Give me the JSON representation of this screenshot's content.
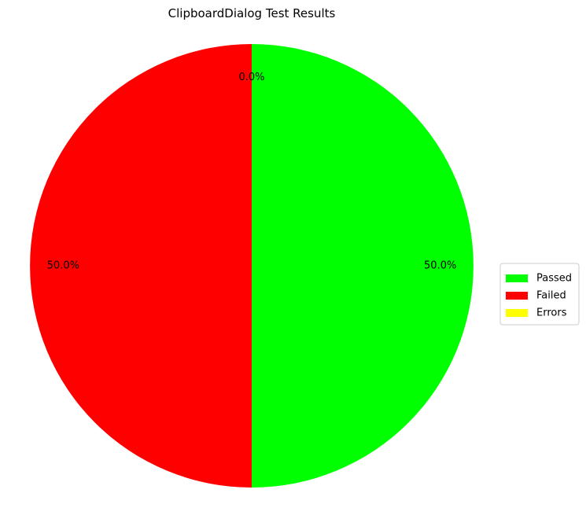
{
  "chart_data": {
    "type": "pie",
    "title": "ClipboardDialog Test Results",
    "categories": [
      "Passed",
      "Failed",
      "Errors"
    ],
    "values": [
      1,
      1,
      0
    ],
    "percent_labels": [
      "50.0%",
      "50.0%",
      "0.0%"
    ],
    "colors": [
      "#00ff00",
      "#ff0000",
      "#ffff00"
    ],
    "start_angle_deg": 90,
    "direction": "clockwise",
    "legend": {
      "placement": "center-right",
      "entries": [
        "Passed",
        "Failed",
        "Errors"
      ]
    }
  }
}
